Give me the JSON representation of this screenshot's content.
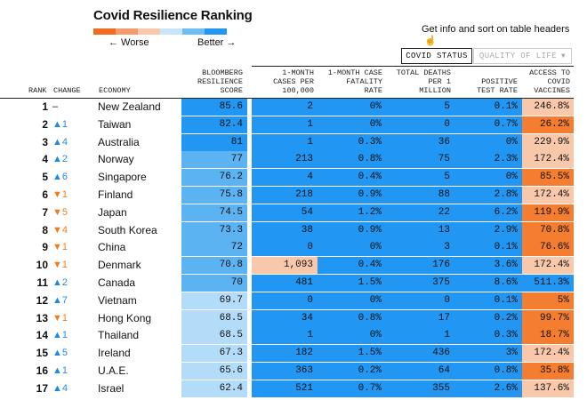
{
  "header": {
    "title": "Covid Resilience Ranking",
    "worse_label": "← Worse",
    "better_label": "Better →",
    "legend_colors": [
      "#f26b22",
      "#f59a6a",
      "#f9c8aa",
      "#c7e6fb",
      "#6fbdf4",
      "#2196f3"
    ],
    "info_text": "Get info and sort on table headers",
    "info_icon": "pointer-hand-icon"
  },
  "toggles": {
    "covid_status": "COVID STATUS",
    "quality_of_life": "QUALITY OF LIFE",
    "quality_caret": "▼"
  },
  "columns": {
    "rank": "RANK",
    "change": "CHANGE",
    "economy": "ECONOMY",
    "score": "BLOOMBERG\nRESILIENCE\nSCORE",
    "cases": "1-MONTH\nCASES PER\n100,000",
    "cfr": "1-MONTH CASE\nFATALITY\nRATE",
    "deaths": "TOTAL DEATHS\nPER 1\nMILLION",
    "positive": "POSITIVE\nTEST RATE",
    "vaccines": "ACCESS TO\nCOVID\nVACCINES"
  },
  "colors": {
    "blue_dark": "#2196f3",
    "blue_mid": "#5cb3f2",
    "blue_light": "#b3dcf9",
    "peach": "#f9c8aa",
    "orange": "#f47d30"
  },
  "rows": [
    {
      "rank": "1",
      "dir": "none",
      "change": "–",
      "economy": "New Zealand",
      "score": "85.6",
      "score_c": "blue_dark",
      "cases": "2",
      "cases_c": "blue_dark",
      "cfr": "0%",
      "cfr_c": "blue_dark",
      "deaths": "5",
      "deaths_c": "blue_dark",
      "positive": "0.1%",
      "positive_c": "blue_dark",
      "vaccines": "246.8%",
      "vaccines_c": "peach"
    },
    {
      "rank": "2",
      "dir": "up",
      "change": "▲1",
      "economy": "Taiwan",
      "score": "82.4",
      "score_c": "blue_dark",
      "cases": "1",
      "cases_c": "blue_dark",
      "cfr": "0%",
      "cfr_c": "blue_dark",
      "deaths": "0",
      "deaths_c": "blue_dark",
      "positive": "0.7%",
      "positive_c": "blue_dark",
      "vaccines": "26.2%",
      "vaccines_c": "orange"
    },
    {
      "rank": "3",
      "dir": "up",
      "change": "▲4",
      "economy": "Australia",
      "score": "81",
      "score_c": "blue_dark",
      "cases": "1",
      "cases_c": "blue_dark",
      "cfr": "0.3%",
      "cfr_c": "blue_dark",
      "deaths": "36",
      "deaths_c": "blue_dark",
      "positive": "0%",
      "positive_c": "blue_dark",
      "vaccines": "229.9%",
      "vaccines_c": "peach"
    },
    {
      "rank": "4",
      "dir": "up",
      "change": "▲2",
      "economy": "Norway",
      "score": "77",
      "score_c": "blue_mid",
      "cases": "213",
      "cases_c": "blue_dark",
      "cfr": "0.8%",
      "cfr_c": "blue_dark",
      "deaths": "75",
      "deaths_c": "blue_dark",
      "positive": "2.3%",
      "positive_c": "blue_dark",
      "vaccines": "172.4%",
      "vaccines_c": "peach"
    },
    {
      "rank": "5",
      "dir": "up",
      "change": "▲6",
      "economy": "Singapore",
      "score": "76.2",
      "score_c": "blue_mid",
      "cases": "4",
      "cases_c": "blue_dark",
      "cfr": "0.4%",
      "cfr_c": "blue_dark",
      "deaths": "5",
      "deaths_c": "blue_dark",
      "positive": "0%",
      "positive_c": "blue_dark",
      "vaccines": "85.5%",
      "vaccines_c": "orange"
    },
    {
      "rank": "6",
      "dir": "down",
      "change": "▼1",
      "economy": "Finland",
      "score": "75.8",
      "score_c": "blue_mid",
      "cases": "218",
      "cases_c": "blue_dark",
      "cfr": "0.9%",
      "cfr_c": "blue_dark",
      "deaths": "88",
      "deaths_c": "blue_dark",
      "positive": "2.8%",
      "positive_c": "blue_dark",
      "vaccines": "172.4%",
      "vaccines_c": "peach"
    },
    {
      "rank": "7",
      "dir": "down",
      "change": "▼5",
      "economy": "Japan",
      "score": "74.5",
      "score_c": "blue_mid",
      "cases": "54",
      "cases_c": "blue_dark",
      "cfr": "1.2%",
      "cfr_c": "blue_dark",
      "deaths": "22",
      "deaths_c": "blue_dark",
      "positive": "6.2%",
      "positive_c": "blue_dark",
      "vaccines": "119.9%",
      "vaccines_c": "orange"
    },
    {
      "rank": "8",
      "dir": "down",
      "change": "▼4",
      "economy": "South Korea",
      "score": "73.3",
      "score_c": "blue_mid",
      "cases": "38",
      "cases_c": "blue_dark",
      "cfr": "0.9%",
      "cfr_c": "blue_dark",
      "deaths": "13",
      "deaths_c": "blue_dark",
      "positive": "2.9%",
      "positive_c": "blue_dark",
      "vaccines": "70.8%",
      "vaccines_c": "orange"
    },
    {
      "rank": "9",
      "dir": "down",
      "change": "▼1",
      "economy": "China",
      "score": "72",
      "score_c": "blue_mid",
      "cases": "0",
      "cases_c": "blue_dark",
      "cfr": "0%",
      "cfr_c": "blue_dark",
      "deaths": "3",
      "deaths_c": "blue_dark",
      "positive": "0.1%",
      "positive_c": "blue_dark",
      "vaccines": "76.6%",
      "vaccines_c": "orange"
    },
    {
      "rank": "10",
      "dir": "down",
      "change": "▼1",
      "economy": "Denmark",
      "score": "70.8",
      "score_c": "blue_mid",
      "cases": "1,093",
      "cases_c": "peach",
      "cfr": "0.4%",
      "cfr_c": "blue_dark",
      "deaths": "176",
      "deaths_c": "blue_dark",
      "positive": "3.6%",
      "positive_c": "blue_dark",
      "vaccines": "172.4%",
      "vaccines_c": "peach"
    },
    {
      "rank": "11",
      "dir": "up",
      "change": "▲2",
      "economy": "Canada",
      "score": "70",
      "score_c": "blue_mid",
      "cases": "481",
      "cases_c": "blue_dark",
      "cfr": "1.5%",
      "cfr_c": "blue_dark",
      "deaths": "375",
      "deaths_c": "blue_dark",
      "positive": "8.6%",
      "positive_c": "blue_dark",
      "vaccines": "511.3%",
      "vaccines_c": "blue_dark"
    },
    {
      "rank": "12",
      "dir": "up",
      "change": "▲7",
      "economy": "Vietnam",
      "score": "69.7",
      "score_c": "blue_light",
      "cases": "0",
      "cases_c": "blue_dark",
      "cfr": "0%",
      "cfr_c": "blue_dark",
      "deaths": "0",
      "deaths_c": "blue_dark",
      "positive": "0.1%",
      "positive_c": "blue_dark",
      "vaccines": "5%",
      "vaccines_c": "orange"
    },
    {
      "rank": "13",
      "dir": "down",
      "change": "▼1",
      "economy": "Hong Kong",
      "score": "68.5",
      "score_c": "blue_light",
      "cases": "34",
      "cases_c": "blue_dark",
      "cfr": "0.8%",
      "cfr_c": "blue_dark",
      "deaths": "17",
      "deaths_c": "blue_dark",
      "positive": "0.2%",
      "positive_c": "blue_dark",
      "vaccines": "99.7%",
      "vaccines_c": "orange"
    },
    {
      "rank": "14",
      "dir": "up",
      "change": "▲1",
      "economy": "Thailand",
      "score": "68.5",
      "score_c": "blue_light",
      "cases": "1",
      "cases_c": "blue_dark",
      "cfr": "0%",
      "cfr_c": "blue_dark",
      "deaths": "1",
      "deaths_c": "blue_dark",
      "positive": "0.3%",
      "positive_c": "blue_dark",
      "vaccines": "18.7%",
      "vaccines_c": "orange"
    },
    {
      "rank": "15",
      "dir": "up",
      "change": "▲5",
      "economy": "Ireland",
      "score": "67.3",
      "score_c": "blue_light",
      "cases": "182",
      "cases_c": "blue_dark",
      "cfr": "1.5%",
      "cfr_c": "blue_dark",
      "deaths": "436",
      "deaths_c": "blue_dark",
      "positive": "3%",
      "positive_c": "blue_dark",
      "vaccines": "172.4%",
      "vaccines_c": "peach"
    },
    {
      "rank": "16",
      "dir": "up",
      "change": "▲1",
      "economy": "U.A.E.",
      "score": "65.6",
      "score_c": "blue_light",
      "cases": "363",
      "cases_c": "blue_dark",
      "cfr": "0.2%",
      "cfr_c": "blue_dark",
      "deaths": "64",
      "deaths_c": "blue_dark",
      "positive": "0.8%",
      "positive_c": "blue_dark",
      "vaccines": "35.8%",
      "vaccines_c": "orange"
    },
    {
      "rank": "17",
      "dir": "up",
      "change": "▲4",
      "economy": "Israel",
      "score": "62.4",
      "score_c": "blue_light",
      "cases": "521",
      "cases_c": "blue_dark",
      "cfr": "0.7%",
      "cfr_c": "blue_dark",
      "deaths": "355",
      "deaths_c": "blue_dark",
      "positive": "2.6%",
      "positive_c": "blue_dark",
      "vaccines": "137.6%",
      "vaccines_c": "peach"
    }
  ]
}
